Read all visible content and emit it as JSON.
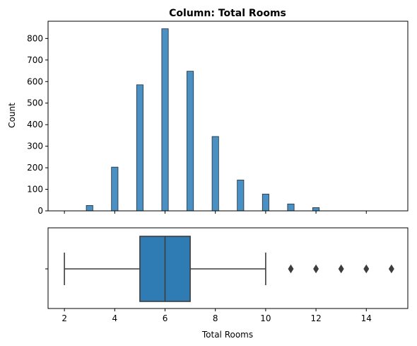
{
  "colors": {
    "bar_fill": "#4a90c2",
    "bar_edge": "#1f2d3a",
    "box_fill": "#2f7bb4",
    "box_line": "#3d3d3d",
    "axis": "#000000"
  },
  "chart_data": [
    {
      "type": "histogram",
      "title": "Column: Total Rooms",
      "xlabel": "",
      "ylabel": "Count",
      "xlim": [
        1.35,
        15.65
      ],
      "ylim": [
        0,
        880
      ],
      "bin_width": 0.26,
      "bars": [
        {
          "x": 3,
          "count": 25
        },
        {
          "x": 4,
          "count": 203
        },
        {
          "x": 5,
          "count": 585
        },
        {
          "x": 6,
          "count": 845
        },
        {
          "x": 7,
          "count": 648
        },
        {
          "x": 8,
          "count": 345
        },
        {
          "x": 9,
          "count": 143
        },
        {
          "x": 10,
          "count": 78
        },
        {
          "x": 11,
          "count": 32
        },
        {
          "x": 12,
          "count": 15
        }
      ],
      "xticks": [
        2,
        4,
        6,
        8,
        10,
        12,
        14
      ],
      "xtick_labels_visible": false,
      "yticks": [
        0,
        100,
        200,
        300,
        400,
        500,
        600,
        700,
        800
      ],
      "ytick_labels": [
        "0",
        "100",
        "200",
        "300",
        "400",
        "500",
        "600",
        "700",
        "800"
      ]
    },
    {
      "type": "box",
      "title": "",
      "xlabel": "Total Rooms",
      "ylabel": "",
      "xlim": [
        1.35,
        15.65
      ],
      "whisker_low": 2,
      "q1": 5,
      "median": 6,
      "q3": 7,
      "whisker_high": 10,
      "outliers": [
        11,
        12,
        13,
        14,
        15
      ],
      "xticks": [
        2,
        4,
        6,
        8,
        10,
        12,
        14
      ],
      "xtick_labels": [
        "2",
        "4",
        "6",
        "8",
        "10",
        "12",
        "14"
      ]
    }
  ]
}
